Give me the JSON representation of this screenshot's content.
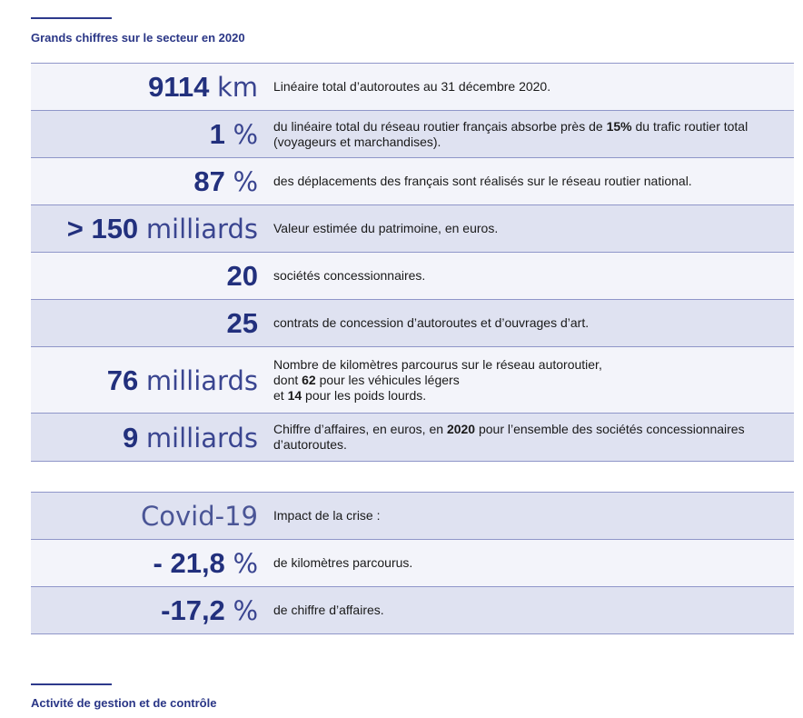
{
  "section1": {
    "title": "Grands chiffres sur le secteur en 2020"
  },
  "rows": [
    {
      "big": "9114",
      "unit": "km",
      "desc": "Linéaire total d’autoroutes au 31 décembre 2020."
    },
    {
      "big": "1",
      "unit": "%",
      "desc_a": "du linéaire total du réseau routier français absorbe près de ",
      "desc_b": "15%",
      "desc_c": " du trafic routier total (voyageurs et marchandises)."
    },
    {
      "big": "87",
      "unit": "%",
      "desc": "des déplacements des français sont réalisés sur le réseau routier national."
    },
    {
      "big": "> 150",
      "unit": "milliards",
      "desc": "Valeur estimée du patrimoine, en euros."
    },
    {
      "big": "20",
      "desc": "sociétés concessionnaires."
    },
    {
      "big": "25",
      "desc": "contrats de concession d’autoroutes et d’ouvrages d’art."
    },
    {
      "big": "76",
      "unit": "milliards",
      "line1": "Nombre de kilomètres parcourus sur le réseau autoroutier,",
      "line2_a": "dont ",
      "line2_b": "62",
      "line2_c": " pour les véhicules légers",
      "line3_a": "et ",
      "line3_b": "14",
      "line3_c": " pour les poids lourds."
    },
    {
      "big": "9",
      "unit": "milliards",
      "desc_a": "Chiffre d’affaires, en euros, en ",
      "desc_b": "2020",
      "desc_c": " pour l’ensemble des sociétés concessionnaires d’autoroutes."
    }
  ],
  "covid": {
    "label": "Covid-19",
    "desc": "Impact de la crise :",
    "rows": [
      {
        "big": "- 21,8",
        "unit": "%",
        "desc": "de kilomètres parcourus."
      },
      {
        "big": "-17,2",
        "unit": "%",
        "desc": "de chiffre d’affaires."
      }
    ]
  },
  "section2": {
    "title": "Activité de gestion et de contrôle"
  }
}
